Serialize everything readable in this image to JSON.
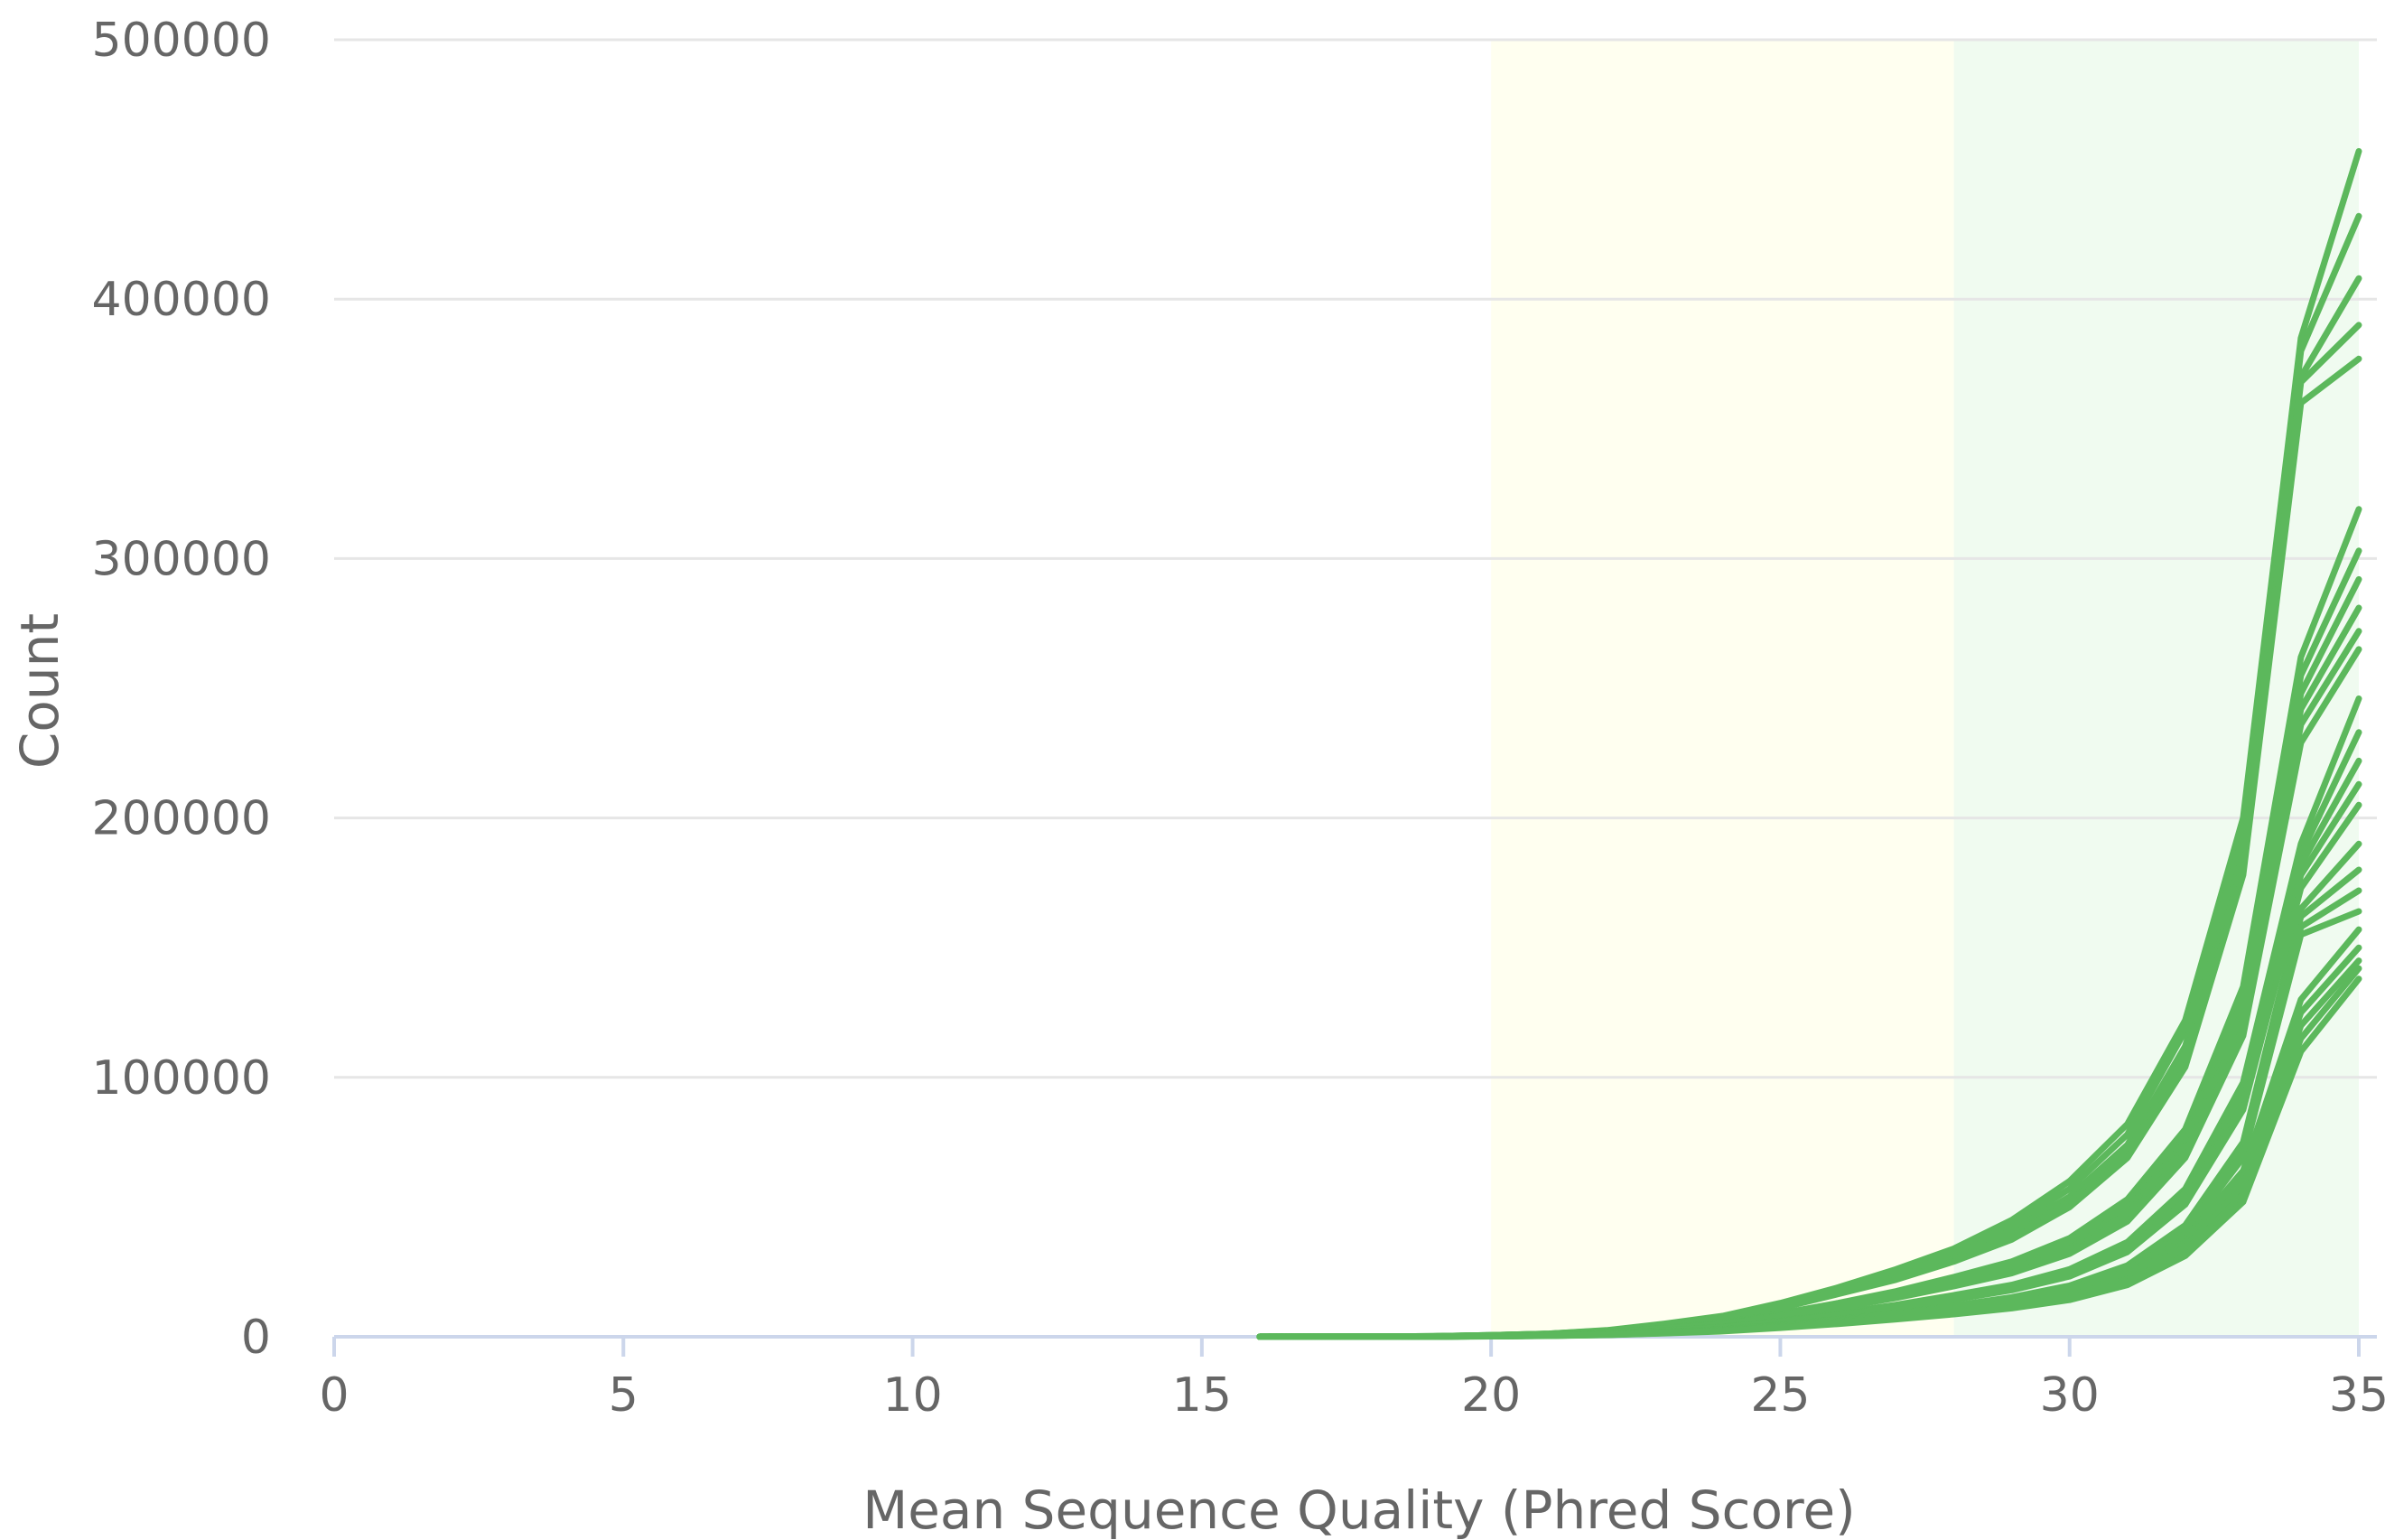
{
  "chart_data": {
    "type": "line",
    "title": "",
    "xlabel": "Mean Sequence Quality (Phred Score)",
    "ylabel": "Count",
    "xlim": [
      0,
      35
    ],
    "ylim": [
      0,
      500000
    ],
    "x_ticks": [
      "0",
      "5",
      "10",
      "15",
      "20",
      "25",
      "30",
      "35"
    ],
    "y_ticks": [
      "0",
      "100000",
      "200000",
      "300000",
      "400000",
      "500000"
    ],
    "grid": true,
    "legend": "none",
    "series_color": "#5cb85c",
    "bands": [
      {
        "from": 20,
        "to": 28,
        "color": "#fffff0"
      },
      {
        "from": 28,
        "to": 35,
        "color": "#f0fbf0"
      }
    ],
    "x": [
      16,
      17,
      18,
      19,
      20,
      21,
      22,
      23,
      24,
      25,
      26,
      27,
      28,
      29,
      30,
      31,
      32,
      33,
      34,
      35
    ],
    "series": [
      {
        "values": [
          20,
          40,
          80,
          200,
          600,
          1200,
          2500,
          5000,
          8000,
          13000,
          19000,
          26000,
          34000,
          45000,
          60000,
          82000,
          122000,
          200000,
          385000,
          457000
        ]
      },
      {
        "values": [
          20,
          40,
          80,
          200,
          600,
          1200,
          2400,
          4800,
          7600,
          12500,
          18500,
          25000,
          33000,
          43000,
          57000,
          78000,
          118000,
          193000,
          380000,
          432000
        ]
      },
      {
        "values": [
          20,
          40,
          80,
          200,
          580,
          1100,
          2300,
          4600,
          7300,
          12000,
          17800,
          24000,
          31500,
          41000,
          54000,
          74000,
          112000,
          186000,
          370000,
          408000
        ]
      },
      {
        "values": [
          20,
          40,
          80,
          180,
          560,
          1100,
          2200,
          4400,
          7000,
          11500,
          17000,
          23000,
          30000,
          39000,
          52000,
          71000,
          108000,
          182000,
          368000,
          390000
        ]
      },
      {
        "values": [
          20,
          40,
          70,
          180,
          540,
          1000,
          2100,
          4200,
          6700,
          11000,
          16500,
          22000,
          29000,
          37500,
          50000,
          69000,
          104000,
          178000,
          360000,
          377000
        ]
      },
      {
        "values": [
          20,
          30,
          60,
          150,
          450,
          900,
          1800,
          3500,
          5600,
          9000,
          13000,
          17500,
          23000,
          29000,
          38000,
          53000,
          80000,
          135000,
          262000,
          319000
        ]
      },
      {
        "values": [
          20,
          30,
          60,
          150,
          440,
          880,
          1750,
          3400,
          5400,
          8700,
          12600,
          17000,
          22000,
          28000,
          36500,
          51000,
          77000,
          130000,
          255000,
          303000
        ]
      },
      {
        "values": [
          20,
          30,
          60,
          140,
          430,
          860,
          1700,
          3300,
          5200,
          8400,
          12200,
          16500,
          21300,
          27000,
          35000,
          49000,
          75000,
          126000,
          248000,
          292000
        ]
      },
      {
        "values": [
          20,
          30,
          60,
          140,
          420,
          840,
          1650,
          3200,
          5000,
          8200,
          11800,
          16000,
          20700,
          26000,
          34000,
          47500,
          73000,
          122000,
          242000,
          281000
        ]
      },
      {
        "values": [
          20,
          30,
          60,
          140,
          410,
          820,
          1600,
          3100,
          4900,
          8000,
          11500,
          15500,
          20100,
          25300,
          33000,
          46000,
          71000,
          119000,
          236000,
          272000
        ]
      },
      {
        "values": [
          20,
          30,
          50,
          130,
          400,
          800,
          1550,
          3000,
          4750,
          7700,
          11100,
          15000,
          19500,
          24500,
          32000,
          44500,
          69000,
          116000,
          229000,
          265000
        ]
      },
      {
        "values": [
          10,
          30,
          50,
          120,
          340,
          680,
          1300,
          2500,
          3900,
          6300,
          9100,
          12300,
          16000,
          20000,
          26000,
          36500,
          57000,
          98000,
          190000,
          246000
        ]
      },
      {
        "values": [
          10,
          30,
          50,
          120,
          330,
          660,
          1260,
          2420,
          3800,
          6100,
          8850,
          12000,
          15500,
          19500,
          25300,
          35500,
          55500,
          95000,
          186000,
          233000
        ]
      },
      {
        "values": [
          10,
          20,
          50,
          110,
          320,
          640,
          1230,
          2360,
          3700,
          5950,
          8600,
          11700,
          15100,
          19000,
          24600,
          34500,
          54000,
          92500,
          182000,
          222000
        ]
      },
      {
        "values": [
          10,
          20,
          50,
          110,
          310,
          620,
          1200,
          2300,
          3600,
          5800,
          8400,
          11400,
          14700,
          18500,
          24000,
          33600,
          52500,
          90000,
          178000,
          213000
        ]
      },
      {
        "values": [
          10,
          20,
          40,
          110,
          300,
          600,
          1160,
          2230,
          3500,
          5650,
          8200,
          11100,
          14300,
          18000,
          23300,
          32700,
          51000,
          87500,
          173000,
          205000
        ]
      },
      {
        "values": [
          10,
          20,
          40,
          90,
          250,
          500,
          980,
          1900,
          2950,
          4750,
          6900,
          9350,
          12000,
          15200,
          19700,
          27500,
          43000,
          75000,
          165000,
          190000
        ]
      },
      {
        "values": [
          10,
          20,
          40,
          90,
          240,
          490,
          950,
          1840,
          2870,
          4620,
          6700,
          9100,
          11700,
          14800,
          19100,
          26800,
          42000,
          73000,
          162000,
          180000
        ]
      },
      {
        "values": [
          10,
          20,
          40,
          90,
          235,
          480,
          930,
          1800,
          2800,
          4500,
          6550,
          8880,
          11400,
          14400,
          18600,
          26100,
          40800,
          71000,
          158000,
          172000
        ]
      },
      {
        "values": [
          10,
          20,
          30,
          80,
          225,
          460,
          900,
          1740,
          2710,
          4370,
          6350,
          8600,
          11100,
          14000,
          18100,
          25400,
          39700,
          69000,
          155000,
          164000
        ]
      },
      {
        "values": [
          10,
          20,
          30,
          80,
          215,
          440,
          860,
          1660,
          2590,
          4170,
          6050,
          8200,
          10600,
          13400,
          17300,
          24300,
          37900,
          64000,
          130000,
          157000
        ]
      },
      {
        "values": [
          10,
          20,
          30,
          80,
          205,
          420,
          820,
          1590,
          2480,
          3990,
          5800,
          7850,
          10150,
          12800,
          16600,
          23300,
          36300,
          61000,
          125000,
          150000
        ]
      },
      {
        "values": [
          10,
          20,
          30,
          70,
          195,
          400,
          780,
          1510,
          2360,
          3800,
          5520,
          7480,
          9650,
          12200,
          15800,
          22200,
          34600,
          58000,
          120000,
          145000
        ]
      },
      {
        "values": [
          10,
          20,
          30,
          70,
          185,
          380,
          740,
          1440,
          2250,
          3620,
          5260,
          7130,
          9200,
          11600,
          15000,
          21100,
          32900,
          55000,
          115000,
          142000
        ]
      },
      {
        "values": [
          10,
          20,
          30,
          70,
          175,
          360,
          700,
          1360,
          2130,
          3430,
          4980,
          6750,
          8720,
          11000,
          14200,
          20000,
          31200,
          52000,
          110000,
          138000
        ]
      }
    ]
  }
}
